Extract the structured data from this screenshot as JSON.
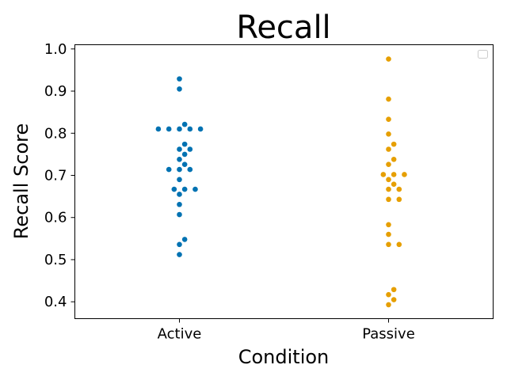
{
  "chart_data": {
    "type": "scatter",
    "subtype": "swarm",
    "title": "Recall",
    "xlabel": "Condition",
    "ylabel": "Recall Score",
    "categories": [
      "Active",
      "Passive"
    ],
    "ylim": [
      0.36,
      1.01
    ],
    "yticks": [
      0.4,
      0.5,
      0.6,
      0.7,
      0.8,
      0.9,
      1.0
    ],
    "ytick_labels": [
      "0.4",
      "0.5",
      "0.6",
      "0.7",
      "0.8",
      "0.9",
      "1.0"
    ],
    "grid": false,
    "legend": {
      "placement": "top-right",
      "entries": []
    },
    "series": [
      {
        "category": "Active",
        "color": "#0072b2",
        "values": [
          0.929,
          0.905,
          0.821,
          0.81,
          0.81,
          0.81,
          0.81,
          0.81,
          0.774,
          0.762,
          0.762,
          0.75,
          0.738,
          0.726,
          0.714,
          0.714,
          0.714,
          0.69,
          0.667,
          0.667,
          0.667,
          0.655,
          0.631,
          0.607,
          0.548,
          0.536,
          0.512
        ]
      },
      {
        "category": "Passive",
        "color": "#e69f00",
        "values": [
          0.976,
          0.881,
          0.833,
          0.798,
          0.774,
          0.762,
          0.738,
          0.726,
          0.702,
          0.702,
          0.702,
          0.69,
          0.679,
          0.667,
          0.667,
          0.643,
          0.643,
          0.583,
          0.56,
          0.536,
          0.536,
          0.429,
          0.417,
          0.405,
          0.393
        ]
      }
    ]
  }
}
